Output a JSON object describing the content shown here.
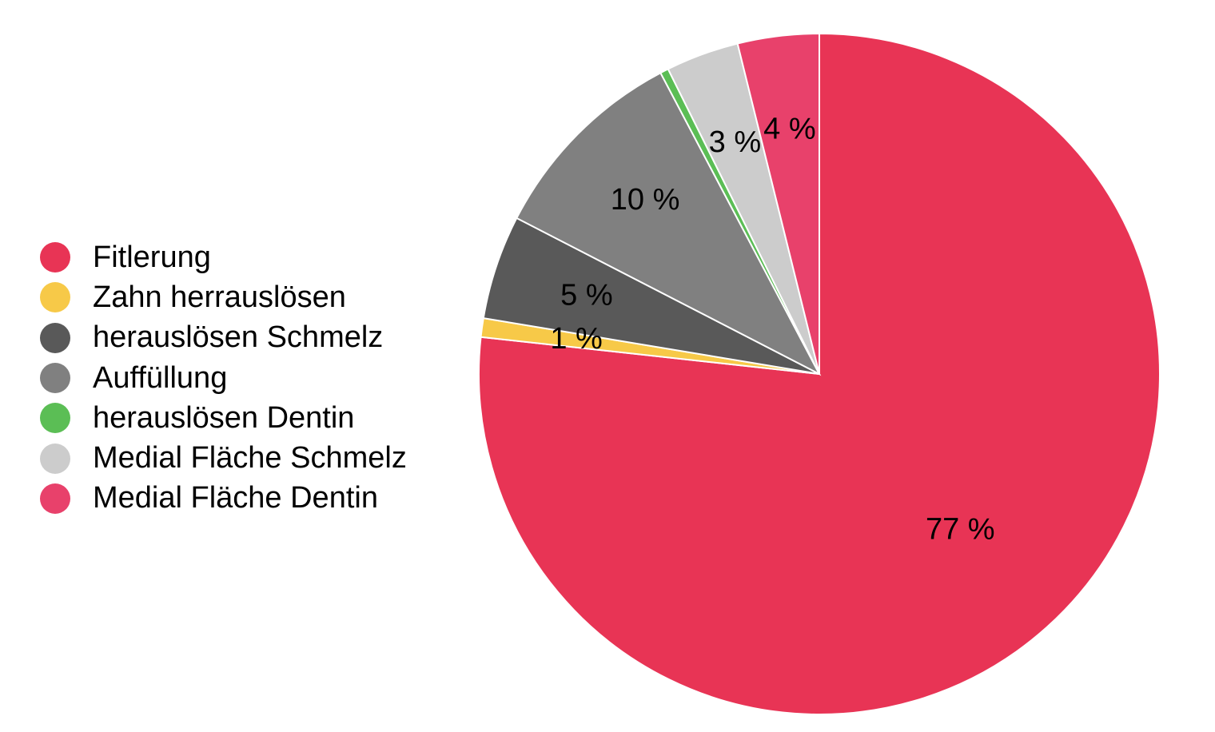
{
  "chart_data": {
    "type": "pie",
    "start": "top",
    "direction": "clockwise",
    "legend_position": "left",
    "slices": [
      {
        "label": "Fitlerung",
        "value": 77.5,
        "display": "77 %",
        "color": "#E83455"
      },
      {
        "label": "Zahn herrauslösen",
        "value": 0.9,
        "display": "1 %",
        "color": "#F7C948"
      },
      {
        "label": "herauslösen Schmelz",
        "value": 5.0,
        "display": "5 %",
        "color": "#595959"
      },
      {
        "label": "Auffüllung",
        "value": 9.8,
        "display": "10 %",
        "color": "#808080"
      },
      {
        "label": "herauslösen Dentin",
        "value": 0.4,
        "display": "",
        "color": "#5BBE55"
      },
      {
        "label": "Medial Fläche Schmelz",
        "value": 3.5,
        "display": "3 %",
        "color": "#CCCCCC"
      },
      {
        "label": "Medial Fläche Dentin",
        "value": 3.9,
        "display": "4 %",
        "color": "#E8416B"
      }
    ]
  }
}
